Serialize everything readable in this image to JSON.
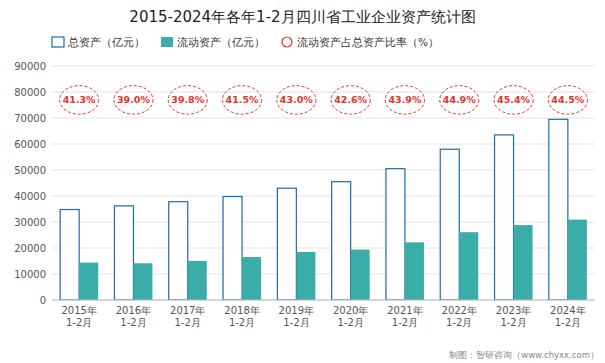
{
  "chart_data": {
    "type": "bar",
    "title": "2015-2024年各年1-2月四川省工业企业资产统计图",
    "categories": [
      "2015年\n1-2月",
      "2016年\n1-2月",
      "2017年\n1-2月",
      "2018年\n1-2月",
      "2019年\n1-2月",
      "2020年\n1-2月",
      "2021年\n1-2月",
      "2022年\n1-2月",
      "2023年\n1-2月",
      "2024年\n1-2月"
    ],
    "series": [
      {
        "name": "总资产（亿元）",
        "color": "#1B6CA8",
        "values": [
          34800,
          36200,
          37800,
          39800,
          43000,
          45500,
          50500,
          58000,
          63500,
          69500
        ]
      },
      {
        "name": "流动资产（亿元）",
        "color": "#3AADA8",
        "values": [
          14380,
          14118,
          15025,
          16517,
          18490,
          19383,
          22170,
          26082,
          28809,
          30928
        ]
      },
      {
        "name": "流动资产占总资产比率（%）",
        "color": "#E8312A",
        "marker": "circle",
        "line_style": "dashed",
        "values": [
          41.3,
          39.0,
          39.8,
          41.5,
          43.0,
          42.6,
          43.9,
          44.9,
          45.4,
          44.5
        ],
        "value_labels": [
          "41.3%",
          "39.0%",
          "39.8%",
          "41.5%",
          "43.0%",
          "42.6%",
          "43.9%",
          "44.9%",
          "45.4%",
          "44.5%"
        ]
      }
    ],
    "ylim": [
      0,
      90000
    ],
    "yticks": [
      0,
      10000,
      20000,
      30000,
      40000,
      50000,
      60000,
      70000,
      80000,
      90000
    ],
    "grid": true,
    "legend": "upper left",
    "annotations": [
      "制图：智研咨询（www.chyxx.com）"
    ]
  }
}
